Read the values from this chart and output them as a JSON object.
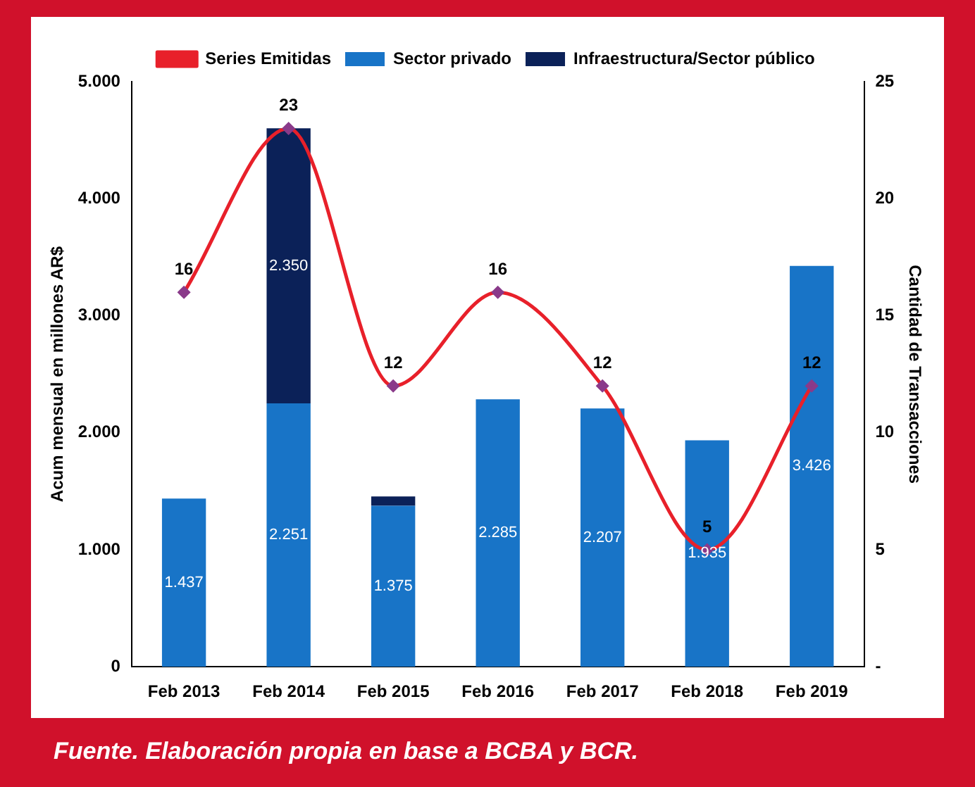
{
  "chart_data": {
    "type": "bar",
    "stacked": true,
    "legend": "top",
    "categories": [
      "Feb 2013",
      "Feb 2014",
      "Feb 2015",
      "Feb 2016",
      "Feb 2017",
      "Feb 2018",
      "Feb 2019"
    ],
    "ylabel": "Acum mensual en millones AR$",
    "y2label": "Cantidad de Transacciones",
    "ylim": [
      0,
      5000
    ],
    "yticks": [
      {
        "value": 0,
        "label": "0"
      },
      {
        "value": 1000,
        "label": "1.000"
      },
      {
        "value": 2000,
        "label": "2.000"
      },
      {
        "value": 3000,
        "label": "3.000"
      },
      {
        "value": 4000,
        "label": "4.000"
      },
      {
        "value": 5000,
        "label": "5.000"
      }
    ],
    "y2lim": [
      0,
      25
    ],
    "y2ticks": [
      {
        "value": 0,
        "label": "-"
      },
      5,
      10,
      15,
      20,
      25
    ],
    "marker": "diamond",
    "series": [
      {
        "name": "Sector privado",
        "color": "#1874c7",
        "values": [
          1437,
          2251,
          1375,
          2285,
          2207,
          1935,
          3426
        ],
        "value_labels": [
          "1.437",
          "2.251",
          "1.375",
          "2.285",
          "2.207",
          "1.935",
          "3.426"
        ]
      },
      {
        "name": "Infraestructura/Sector público",
        "color": "#0b2158",
        "values": [
          0,
          2350,
          80,
          0,
          0,
          0,
          0
        ],
        "value_labels": [
          null,
          "2.350",
          null,
          null,
          null,
          null,
          null
        ]
      },
      {
        "name": "Series Emitidas",
        "type": "line",
        "axis": "y2",
        "color": "#e8202a",
        "values": [
          16,
          23,
          12,
          16,
          12,
          5,
          12
        ],
        "value_labels": [
          "16",
          "23",
          "12",
          "16",
          "12",
          "5",
          "12"
        ]
      }
    ],
    "annotations": [
      "Fuente. Elaboración propia en base a BCBA y BCR."
    ]
  }
}
